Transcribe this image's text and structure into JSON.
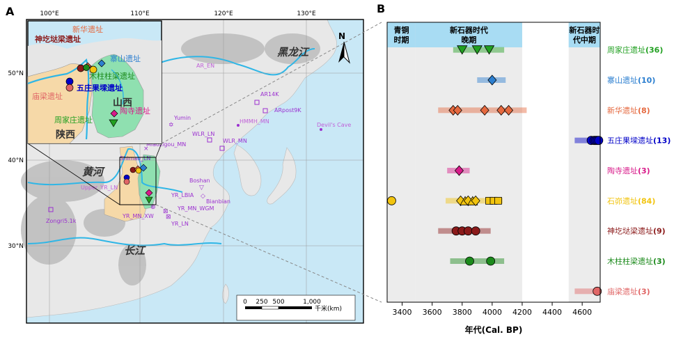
{
  "panels": {
    "a": "A",
    "b": "B"
  },
  "map": {
    "lon_ticks": [
      "100°E",
      "110°E",
      "120°E",
      "130°E"
    ],
    "lat_ticks": [
      "50°N",
      "40°N",
      "30°N"
    ],
    "regions": {
      "shanxi": "山西",
      "shaanxi": "陕西"
    },
    "rivers": {
      "yellow": "黄河",
      "yangtze": "长江",
      "heilongjiang": "黑龙江"
    },
    "north": "N",
    "scale_labels": [
      "0",
      "250",
      "500",
      "1,000"
    ],
    "scale_unit": "千米(km)",
    "inset_sites": [
      {
        "label": "神圪垯梁遗址",
        "color": "#8b1a1a"
      },
      {
        "label": "新华遗址",
        "color": "#e5693f"
      },
      {
        "label": "寨山遗址",
        "color": "#2c7fd0"
      },
      {
        "label": "木柱柱梁遗址",
        "color": "#1b8a1b"
      },
      {
        "label": "五庄果墚遗址",
        "color": "#0000c8"
      },
      {
        "label": "庙梁遗址",
        "color": "#e06666"
      },
      {
        "label": "陶寺遗址",
        "color": "#d81b8a"
      },
      {
        "label": "周家庄遗址",
        "color": "#21a021"
      }
    ],
    "ref_sites": [
      "AR_EN",
      "AR14K",
      "ARpost9K",
      "HMMH_MN",
      "Devil's Cave",
      "Yumin",
      "WLR_LN",
      "WLR_MN",
      "Miaozigou_MN",
      "Shimao_LN",
      "Upper_YR_LN",
      "Zongri5.1k",
      "Boshan",
      "YR_LBIA",
      "Bianbian",
      "YR_MN_WGM",
      "YR_MN_XW",
      "YR_LN"
    ]
  },
  "chart_data": {
    "type": "scatter",
    "title": "",
    "xlabel": "年代(Cal. BP)",
    "ylabel": "",
    "xlim": [
      3300,
      4720
    ],
    "x_ticks": [
      3400,
      3600,
      3800,
      4000,
      4200,
      4400,
      4600
    ],
    "period_bands": [
      {
        "label_lines": [
          "青铜",
          "时期"
        ],
        "range": [
          3300,
          3490
        ]
      },
      {
        "label_lines": [
          "新石器时代",
          "晚期"
        ],
        "range": [
          3490,
          4200
        ]
      },
      {
        "label_lines": [
          "新石器时",
          "代中期"
        ],
        "range": [
          4510,
          4720
        ]
      }
    ],
    "series": [
      {
        "name": "周家庄遗址",
        "count": "(36)",
        "color": "#21a021",
        "marker": "triangle-down",
        "range": [
          3740,
          4080
        ],
        "x": [
          3800,
          3900,
          3980
        ]
      },
      {
        "name": "寨山遗址",
        "count": "(10)",
        "color": "#2c7fd0",
        "marker": "diamond",
        "range": [
          3900,
          4090
        ],
        "x": [
          4000
        ]
      },
      {
        "name": "新华遗址",
        "count": "(8)",
        "color": "#e5693f",
        "marker": "diamond",
        "range": [
          3640,
          4230
        ],
        "x": [
          3740,
          3770,
          3950,
          4060,
          4110
        ]
      },
      {
        "name": "五庄果墚遗址",
        "count": "(13)",
        "color": "#0000c8",
        "marker": "circle",
        "range": [
          4550,
          4720
        ],
        "x": [
          4660,
          4680,
          4690,
          4700,
          4710
        ]
      },
      {
        "name": "陶寺遗址",
        "count": "(3)",
        "color": "#d81b8a",
        "marker": "diamond",
        "range": [
          3700,
          3850
        ],
        "x": [
          3780
        ]
      },
      {
        "name": "石峁遗址",
        "count": "(84)",
        "color": "#f2c40f",
        "marker": "mixed",
        "range": [
          3690,
          4070
        ],
        "x": [
          3330,
          3790,
          3820,
          3840,
          3870,
          3890,
          3980,
          4010,
          4040
        ]
      },
      {
        "name": "神圪垯梁遗址",
        "count": "(9)",
        "color": "#8b1a1a",
        "marker": "circle",
        "range": [
          3640,
          3990
        ],
        "x": [
          3760,
          3800,
          3840,
          3890
        ]
      },
      {
        "name": "木柱柱梁遗址",
        "count": "(3)",
        "color": "#1b8a1b",
        "marker": "circle",
        "range": [
          3720,
          4080
        ],
        "x": [
          3850,
          3990
        ]
      },
      {
        "name": "庙梁遗址",
        "count": "(3)",
        "color": "#e06666",
        "marker": "circle",
        "range": [
          4550,
          4720
        ],
        "x": [
          4700
        ]
      }
    ]
  }
}
